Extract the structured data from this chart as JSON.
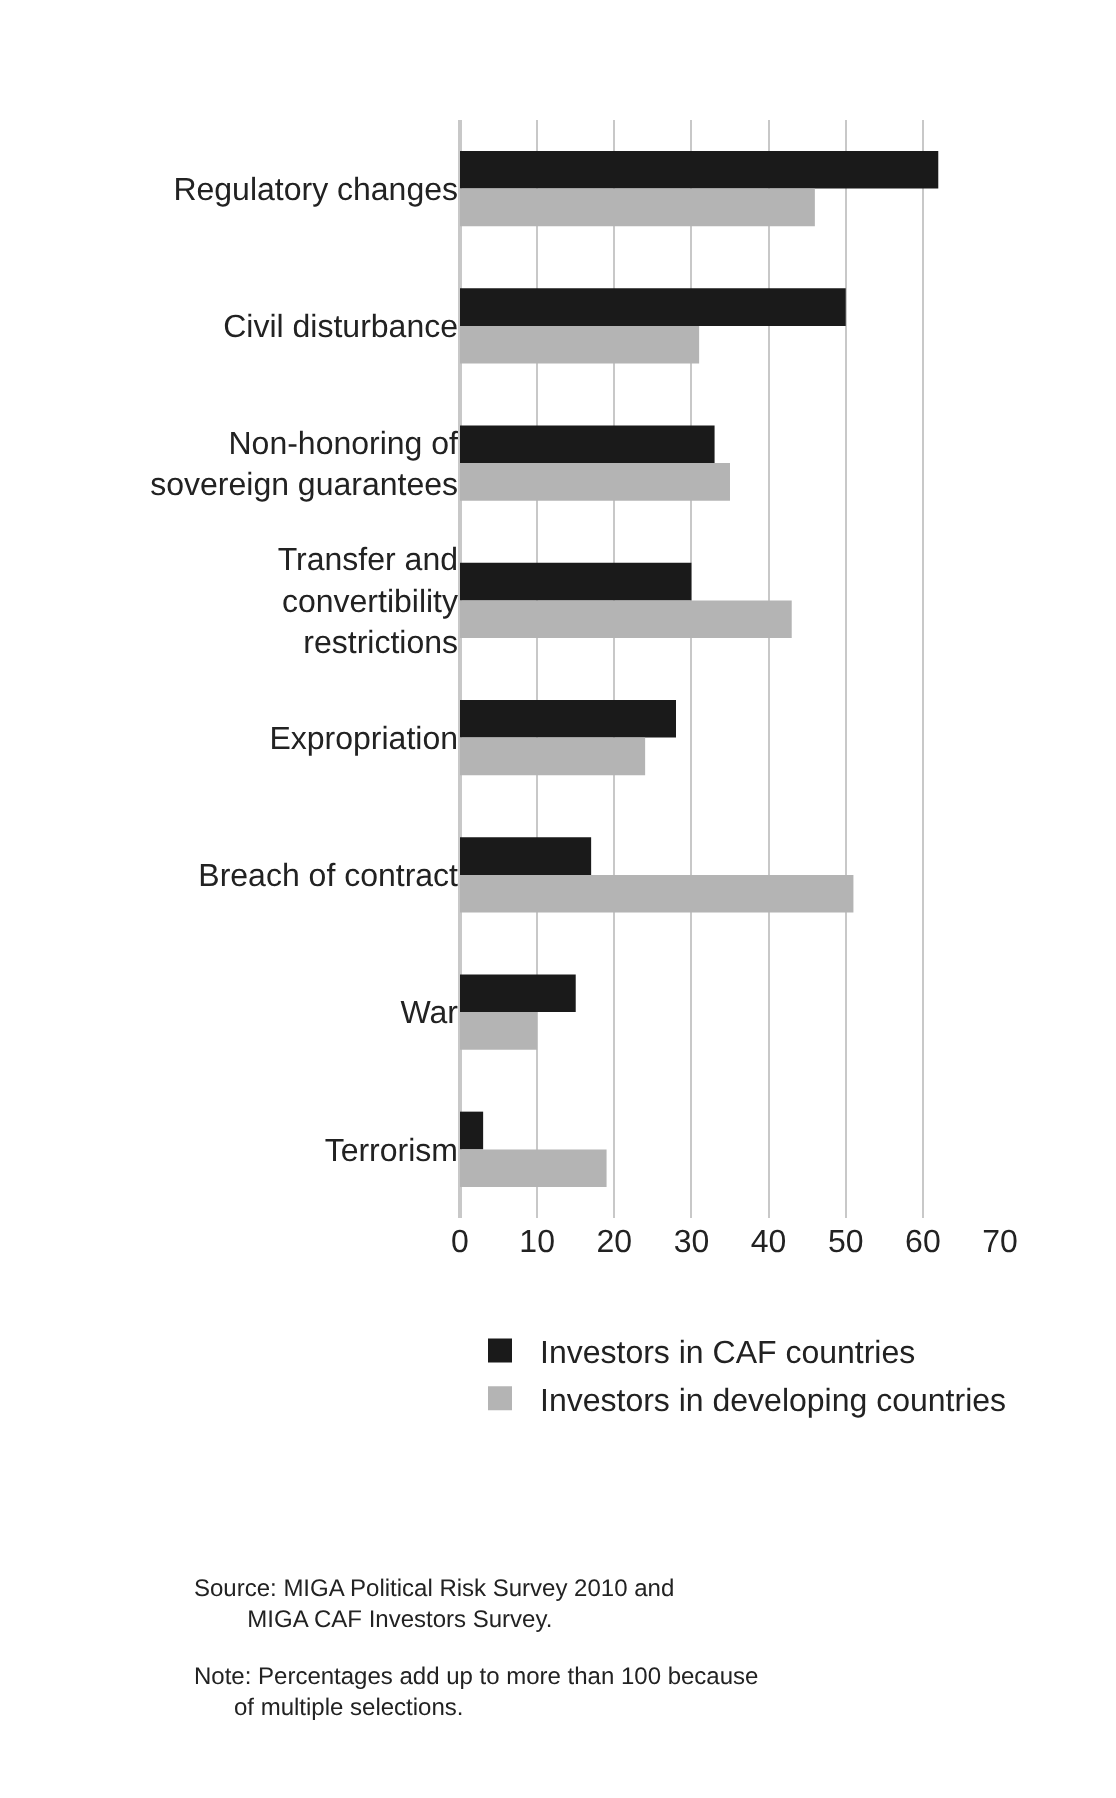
{
  "chart_data": {
    "type": "bar",
    "orientation": "horizontal",
    "categories": [
      "Regulatory changes",
      "Civil disturbance",
      "Non-honoring of\nsovereign guarantees",
      "Transfer and\nconvertibility\nrestrictions",
      "Expropriation",
      "Breach of contract",
      "War",
      "Terrorism"
    ],
    "series": [
      {
        "name": "Investors in CAF countries",
        "color": "#1a1a1a",
        "values": [
          62,
          50,
          33,
          30,
          28,
          17,
          15,
          3
        ]
      },
      {
        "name": "Investors in developing countries",
        "color": "#b4b4b4",
        "values": [
          46,
          31,
          35,
          43,
          24,
          51,
          10,
          19
        ]
      }
    ],
    "xlim": [
      0,
      70
    ],
    "xticks": [
      0,
      10,
      20,
      30,
      40,
      50,
      60,
      70
    ],
    "grid": "x",
    "legend": "bottom",
    "annotations": [
      "Source: MIGA Political Risk Survey 2010 and\n        MIGA CAF Investors Survey.",
      "Note: Percentages add up to more than 100 because\n      of multiple selections."
    ]
  }
}
